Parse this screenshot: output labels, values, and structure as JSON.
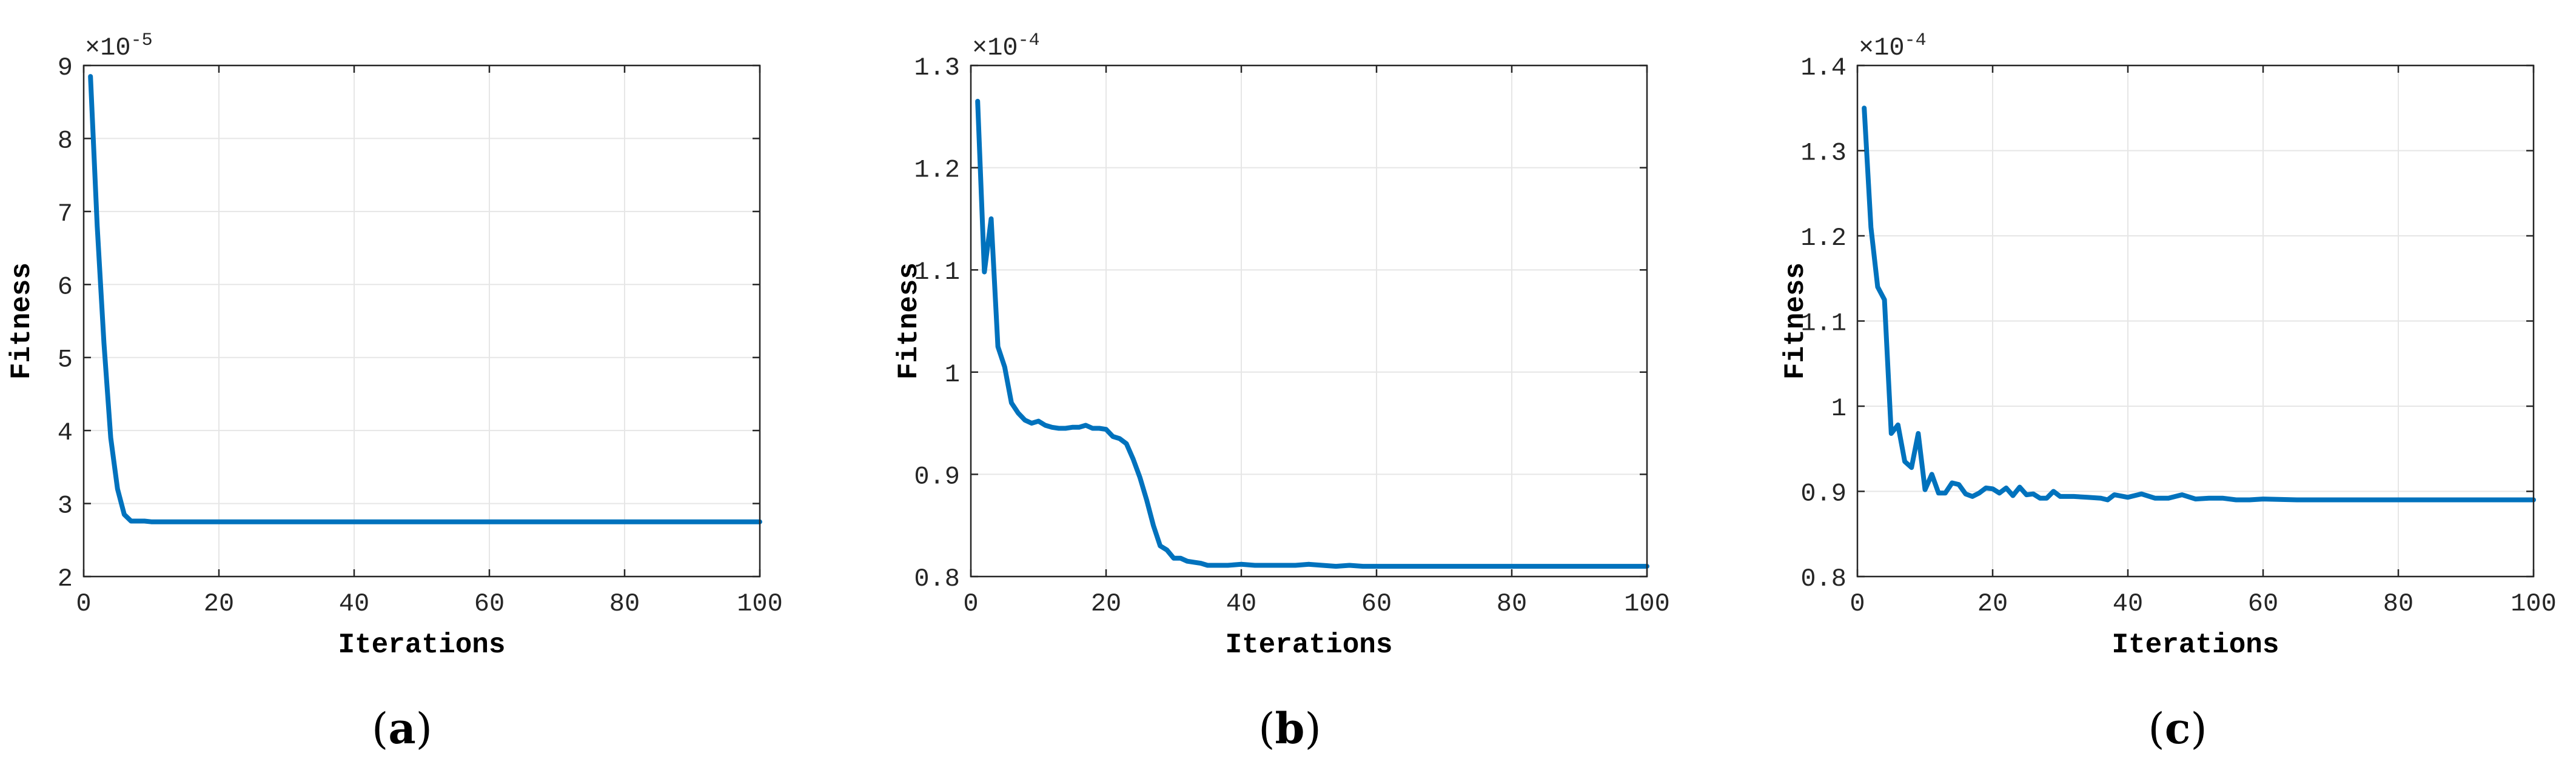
{
  "colors": {
    "line": "#0072BD",
    "grid": "#e6e6e6",
    "axis": "#262626"
  },
  "panels": [
    {
      "label_open": "(",
      "label_letter": "a",
      "label_close": ")"
    },
    {
      "label_open": "(",
      "label_letter": "b",
      "label_close": ")"
    },
    {
      "label_open": "(",
      "label_letter": "c",
      "label_close": ")"
    }
  ],
  "chart_data": [
    {
      "type": "line",
      "xlabel": "Iterations",
      "ylabel": "Fitness",
      "exponent_label": "×10",
      "exponent": "-5",
      "xlim": [
        0,
        100
      ],
      "ylim": [
        2,
        9
      ],
      "xticks": [
        "0",
        "20",
        "40",
        "60",
        "80",
        "100"
      ],
      "yticks": [
        "2",
        "3",
        "4",
        "5",
        "6",
        "7",
        "8",
        "9"
      ],
      "grid": true,
      "series": [
        {
          "x": [
            1,
            2,
            3,
            4,
            5,
            6,
            7,
            8,
            9,
            10,
            12,
            15,
            20,
            30,
            40,
            50,
            60,
            70,
            80,
            90,
            100
          ],
          "y": [
            8.85,
            6.8,
            5.2,
            3.9,
            3.2,
            2.85,
            2.76,
            2.76,
            2.76,
            2.75,
            2.75,
            2.75,
            2.75,
            2.75,
            2.75,
            2.75,
            2.75,
            2.75,
            2.75,
            2.75,
            2.75
          ]
        }
      ]
    },
    {
      "type": "line",
      "xlabel": "Iterations",
      "ylabel": "Fitness",
      "exponent_label": "×10",
      "exponent": "-4",
      "xlim": [
        0,
        100
      ],
      "ylim": [
        0.8,
        1.3
      ],
      "xticks": [
        "0",
        "20",
        "40",
        "60",
        "80",
        "100"
      ],
      "yticks": [
        "0.8",
        "0.9",
        "1",
        "1.1",
        "1.2",
        "1.3"
      ],
      "grid": true,
      "series": [
        {
          "x": [
            1,
            2,
            3,
            4,
            5,
            6,
            7,
            8,
            9,
            10,
            11,
            12,
            13,
            14,
            15,
            16,
            17,
            18,
            19,
            20,
            21,
            22,
            23,
            24,
            25,
            26,
            27,
            28,
            29,
            30,
            31,
            32,
            33,
            34,
            35,
            36,
            38,
            40,
            42,
            44,
            46,
            48,
            50,
            52,
            54,
            56,
            58,
            60,
            65,
            70,
            80,
            90,
            100
          ],
          "y": [
            1.265,
            1.098,
            1.15,
            1.025,
            1.005,
            0.97,
            0.96,
            0.953,
            0.95,
            0.952,
            0.948,
            0.946,
            0.945,
            0.945,
            0.946,
            0.946,
            0.948,
            0.945,
            0.945,
            0.944,
            0.937,
            0.935,
            0.93,
            0.915,
            0.897,
            0.875,
            0.85,
            0.83,
            0.826,
            0.818,
            0.818,
            0.815,
            0.814,
            0.813,
            0.811,
            0.811,
            0.811,
            0.812,
            0.811,
            0.811,
            0.811,
            0.811,
            0.812,
            0.811,
            0.81,
            0.811,
            0.81,
            0.81,
            0.81,
            0.81,
            0.81,
            0.81,
            0.81
          ]
        }
      ]
    },
    {
      "type": "line",
      "xlabel": "Iterations",
      "ylabel": "Fitness",
      "exponent_label": "×10",
      "exponent": "-4",
      "xlim": [
        0,
        100
      ],
      "ylim": [
        0.8,
        1.4
      ],
      "xticks": [
        "0",
        "20",
        "40",
        "60",
        "80",
        "100"
      ],
      "yticks": [
        "0.8",
        "0.9",
        "1",
        "1.1",
        "1.2",
        "1.3",
        "1.4"
      ],
      "grid": true,
      "series": [
        {
          "x": [
            1,
            2,
            3,
            4,
            5,
            6,
            7,
            8,
            9,
            10,
            11,
            12,
            13,
            14,
            15,
            16,
            17,
            18,
            19,
            20,
            21,
            22,
            23,
            24,
            25,
            26,
            27,
            28,
            29,
            30,
            32,
            34,
            36,
            37,
            38,
            40,
            42,
            44,
            46,
            48,
            50,
            52,
            54,
            56,
            58,
            60,
            65,
            70,
            80,
            90,
            100
          ],
          "y": [
            1.35,
            1.21,
            1.14,
            1.125,
            0.968,
            0.978,
            0.935,
            0.928,
            0.968,
            0.902,
            0.92,
            0.898,
            0.898,
            0.91,
            0.908,
            0.897,
            0.894,
            0.898,
            0.904,
            0.903,
            0.898,
            0.904,
            0.895,
            0.905,
            0.896,
            0.897,
            0.892,
            0.892,
            0.9,
            0.894,
            0.894,
            0.893,
            0.892,
            0.89,
            0.896,
            0.893,
            0.897,
            0.892,
            0.892,
            0.896,
            0.891,
            0.892,
            0.892,
            0.89,
            0.89,
            0.891,
            0.89,
            0.89,
            0.89,
            0.89,
            0.89
          ]
        }
      ]
    }
  ]
}
